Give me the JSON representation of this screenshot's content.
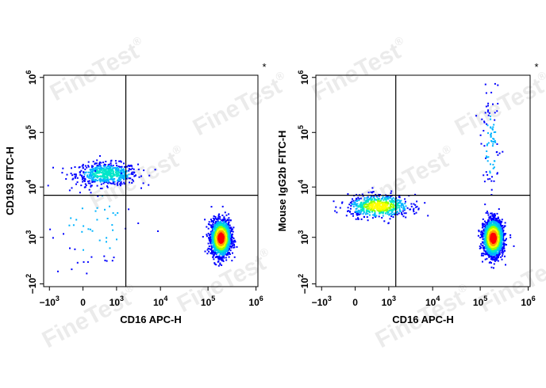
{
  "watermark": {
    "text": "FineTest",
    "mark": "®"
  },
  "chart_data": [
    {
      "type": "scatter",
      "subtype": "flow-cytometry-density-plot",
      "xlabel": "CD16 APC-H",
      "ylabel": "CD193 FITC-H",
      "marker": "*",
      "x_scale": "biexponential",
      "y_scale": "biexponential",
      "x_ticks": [
        {
          "base": "−10",
          "exp": "3",
          "value": -1000
        },
        {
          "base": "0",
          "exp": "",
          "value": 0
        },
        {
          "base": "10",
          "exp": "3",
          "value": 1000
        },
        {
          "base": "10",
          "exp": "4",
          "value": 10000
        },
        {
          "base": "10",
          "exp": "5",
          "value": 100000
        },
        {
          "base": "10",
          "exp": "6",
          "value": 1000000
        }
      ],
      "y_ticks": [
        {
          "base": "−10",
          "exp": "2",
          "value": -100
        },
        {
          "base": "10",
          "exp": "3",
          "value": 1000
        },
        {
          "base": "10",
          "exp": "4",
          "value": 10000
        },
        {
          "base": "10",
          "exp": "5",
          "value": 100000
        },
        {
          "base": "10",
          "exp": "6",
          "value": 1000000
        }
      ],
      "quadrant_gate": {
        "x": 1700,
        "y": 7000
      },
      "populations": [
        {
          "x_center": 500,
          "y_center": 18000,
          "spread_x": "wide",
          "spread_y": "tight",
          "events": 560,
          "peak": "blue-cyan"
        },
        {
          "x_center": 180000,
          "y_center": 1000,
          "spread_x": "tight",
          "spread_y": "medium",
          "events": 1900,
          "peak": "red"
        },
        {
          "x_center": 200,
          "y_center": 2000,
          "spread_x": "sparse",
          "spread_y": "sparse",
          "events": 60,
          "peak": "blue"
        }
      ],
      "colormap": [
        "#0000ff",
        "#00b4ff",
        "#00e6c8",
        "#96ff00",
        "#ffff00",
        "#ffa000",
        "#ff0000"
      ]
    },
    {
      "type": "scatter",
      "subtype": "flow-cytometry-density-plot",
      "xlabel": "CD16 APC-H",
      "ylabel": "Mouse IgG2b FITC-H",
      "marker": "*",
      "x_scale": "biexponential",
      "y_scale": "biexponential",
      "x_ticks": [
        {
          "base": "−10",
          "exp": "3",
          "value": -1000
        },
        {
          "base": "0",
          "exp": "",
          "value": 0
        },
        {
          "base": "10",
          "exp": "3",
          "value": 1000
        },
        {
          "base": "10",
          "exp": "4",
          "value": 10000
        },
        {
          "base": "10",
          "exp": "5",
          "value": 100000
        },
        {
          "base": "10",
          "exp": "6",
          "value": 1000000
        }
      ],
      "y_ticks": [
        {
          "base": "−10",
          "exp": "2",
          "value": -100
        },
        {
          "base": "10",
          "exp": "3",
          "value": 1000
        },
        {
          "base": "10",
          "exp": "4",
          "value": 10000
        },
        {
          "base": "10",
          "exp": "5",
          "value": 100000
        },
        {
          "base": "10",
          "exp": "6",
          "value": 1000000
        }
      ],
      "quadrant_gate": {
        "x": 1500,
        "y": 7000
      },
      "populations": [
        {
          "x_center": 500,
          "y_center": 4500,
          "spread_x": "wide",
          "spread_y": "tight",
          "events": 600,
          "peak": "green-yellow"
        },
        {
          "x_center": 180000,
          "y_center": 1000,
          "spread_x": "tight",
          "spread_y": "medium",
          "events": 2000,
          "peak": "red"
        },
        {
          "x_center": 160000,
          "y_center": 60000,
          "spread_x": "tight",
          "spread_y": "tall",
          "events": 90,
          "peak": "blue"
        }
      ],
      "colormap": [
        "#0000ff",
        "#00b4ff",
        "#00e6c8",
        "#96ff00",
        "#ffff00",
        "#ffa000",
        "#ff0000"
      ]
    }
  ]
}
